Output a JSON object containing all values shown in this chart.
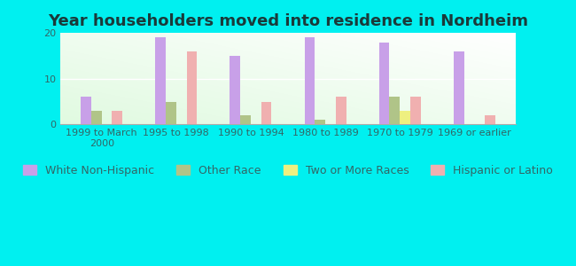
{
  "title": "Year householders moved into residence in Nordheim",
  "categories": [
    "1999 to March\n2000",
    "1995 to 1998",
    "1990 to 1994",
    "1980 to 1989",
    "1970 to 1979",
    "1969 or earlier"
  ],
  "series": {
    "White Non-Hispanic": [
      6,
      19,
      15,
      19,
      18,
      16
    ],
    "Other Race": [
      3,
      5,
      2,
      1,
      6,
      0
    ],
    "Two or More Races": [
      0,
      0,
      0,
      0,
      3,
      0
    ],
    "Hispanic or Latino": [
      3,
      16,
      5,
      6,
      6,
      2
    ]
  },
  "colors": {
    "White Non-Hispanic": "#c8a0e8",
    "Other Race": "#b0c488",
    "Two or More Races": "#eef080",
    "Hispanic or Latino": "#f0b0b0"
  },
  "ylim": [
    0,
    20
  ],
  "yticks": [
    0,
    10,
    20
  ],
  "background_outer": "#00f0f0",
  "bar_width": 0.14,
  "title_fontsize": 13,
  "title_color": "#1a3a3a",
  "legend_fontsize": 9,
  "tick_fontsize": 8,
  "tick_color": "#336666"
}
